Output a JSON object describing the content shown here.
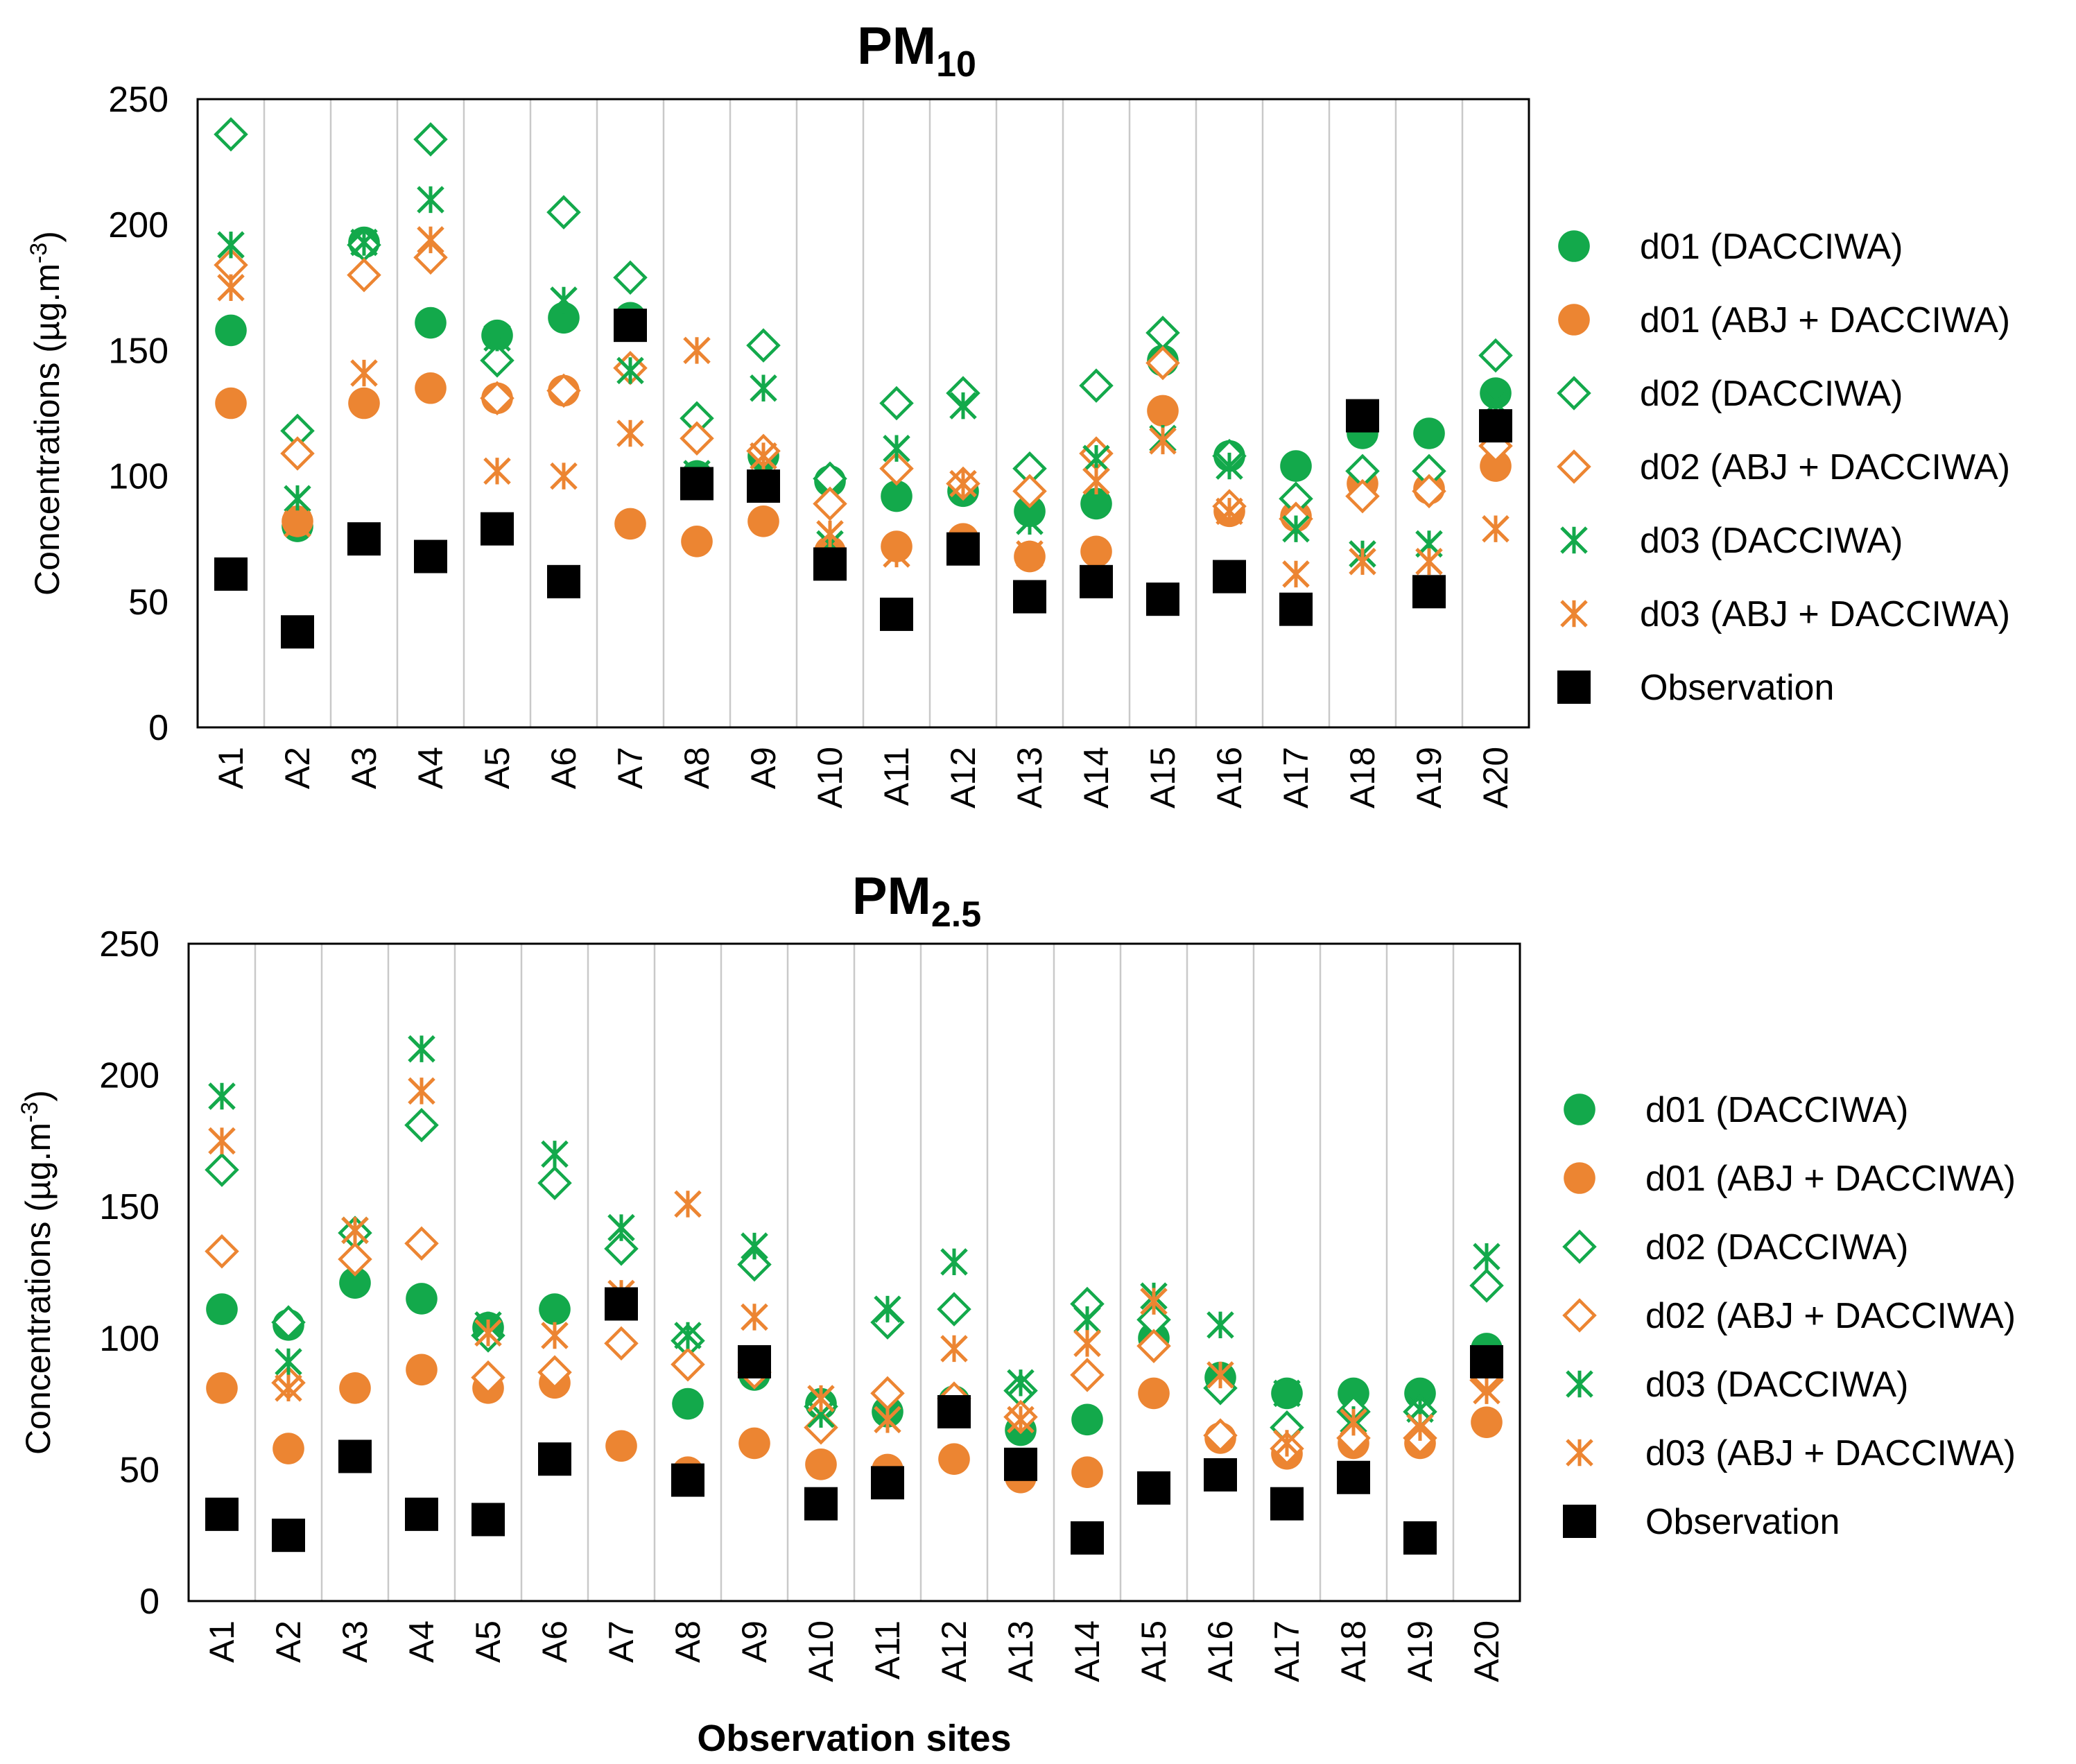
{
  "figure": {
    "xlabel": "Observation sites"
  },
  "colors": {
    "green": "#13a94b",
    "orange": "#ec8532",
    "black": "#000000",
    "grid": "#c9c9c9",
    "frame": "#000000"
  },
  "chart_data": [
    {
      "type": "scatter",
      "title_main": "PM",
      "title_sub": "10",
      "ylabel": "Concentrations (µg.m",
      "ylabel_sup": "-3",
      "ylabel_end": ")",
      "ylim": [
        0,
        250
      ],
      "yticks": [
        0,
        50,
        100,
        150,
        200,
        250
      ],
      "grid": "vertical lines between sites",
      "legend_position": "right",
      "categories": [
        "A1",
        "A2",
        "A3",
        "A4",
        "A5",
        "A6",
        "A7",
        "A8",
        "A9",
        "A10",
        "A11",
        "A12",
        "A13",
        "A14",
        "A15",
        "A16",
        "A17",
        "A18",
        "A19",
        "A20"
      ],
      "series": [
        {
          "name": "d01 (DACCIWA)",
          "marker": "filled-circle",
          "color": "#13a94b",
          "values": [
            158,
            80,
            193,
            161,
            156,
            163,
            163,
            100,
            108,
            98,
            92,
            94,
            86,
            89,
            146,
            108,
            104,
            117,
            117,
            133
          ]
        },
        {
          "name": "d01 (ABJ + DACCIWA)",
          "marker": "filled-circle",
          "color": "#ec8532",
          "values": [
            129,
            82,
            129,
            135,
            131,
            134,
            81,
            74,
            82,
            70,
            72,
            75,
            68,
            70,
            126,
            86,
            84,
            97,
            95,
            104
          ]
        },
        {
          "name": "d02 (DACCIWA)",
          "marker": "open-diamond",
          "color": "#13a94b",
          "values": [
            236,
            118,
            192,
            234,
            146,
            205,
            179,
            123,
            152,
            99,
            129,
            133,
            103,
            136,
            157,
            108,
            91,
            102,
            102,
            148
          ]
        },
        {
          "name": "d02 (ABJ + DACCIWA)",
          "marker": "open-diamond",
          "color": "#ec8532",
          "values": [
            184,
            109,
            180,
            187,
            131,
            134,
            143,
            115,
            110,
            89,
            103,
            97,
            94,
            109,
            145,
            88,
            83,
            92,
            94,
            112
          ]
        },
        {
          "name": "d03 (DACCIWA)",
          "marker": "asterisk",
          "color": "#13a94b",
          "values": [
            192,
            91,
            193,
            210,
            155,
            170,
            142,
            101,
            135,
            73,
            111,
            128,
            82,
            107,
            115,
            104,
            79,
            69,
            73,
            129
          ]
        },
        {
          "name": "d03 (ABJ + DACCIWA)",
          "marker": "asterisk",
          "color": "#ec8532",
          "values": [
            175,
            81,
            141,
            194,
            102,
            100,
            117,
            150,
            108,
            77,
            69,
            97,
            69,
            98,
            114,
            86,
            61,
            66,
            66,
            79
          ]
        },
        {
          "name": "Observation",
          "marker": "filled-square",
          "color": "#000000",
          "values": [
            61,
            38,
            75,
            68,
            79,
            58,
            160,
            97,
            96,
            65,
            45,
            71,
            52,
            58,
            51,
            60,
            47,
            124,
            54,
            120
          ]
        }
      ]
    },
    {
      "type": "scatter",
      "title_main": "PM",
      "title_sub": "2.5",
      "ylabel": "Concentrations (µg.m",
      "ylabel_sup": "-3",
      "ylabel_end": ")",
      "ylim": [
        0,
        250
      ],
      "yticks": [
        0,
        50,
        100,
        150,
        200,
        250
      ],
      "grid": "vertical lines between sites",
      "legend_position": "right",
      "categories": [
        "A1",
        "A2",
        "A3",
        "A4",
        "A5",
        "A6",
        "A7",
        "A8",
        "A9",
        "A10",
        "A11",
        "A12",
        "A13",
        "A14",
        "A15",
        "A16",
        "A17",
        "A18",
        "A19",
        "A20"
      ],
      "series": [
        {
          "name": "d01 (DACCIWA)",
          "marker": "filled-circle",
          "color": "#13a94b",
          "values": [
            111,
            105,
            121,
            115,
            104,
            111,
            113,
            75,
            86,
            75,
            72,
            76,
            65,
            69,
            100,
            85,
            79,
            79,
            79,
            96
          ]
        },
        {
          "name": "d01 (ABJ + DACCIWA)",
          "marker": "filled-circle",
          "color": "#ec8532",
          "values": [
            81,
            58,
            81,
            88,
            81,
            83,
            59,
            49,
            60,
            52,
            50,
            54,
            47,
            49,
            79,
            62,
            56,
            60,
            60,
            68
          ]
        },
        {
          "name": "d02 (DACCIWA)",
          "marker": "open-diamond",
          "color": "#13a94b",
          "values": [
            164,
            106,
            140,
            181,
            101,
            159,
            134,
            99,
            128,
            74,
            106,
            111,
            80,
            113,
            107,
            81,
            66,
            72,
            72,
            120
          ]
        },
        {
          "name": "d02 (ABJ + DACCIWA)",
          "marker": "open-diamond",
          "color": "#ec8532",
          "values": [
            133,
            83,
            130,
            136,
            85,
            87,
            98,
            90,
            87,
            66,
            79,
            77,
            70,
            86,
            97,
            63,
            58,
            62,
            62,
            84
          ]
        },
        {
          "name": "d03 (DACCIWA)",
          "marker": "asterisk",
          "color": "#13a94b",
          "values": [
            192,
            91,
            141,
            210,
            105,
            170,
            142,
            101,
            135,
            71,
            111,
            129,
            83,
            107,
            116,
            105,
            79,
            69,
            73,
            131
          ]
        },
        {
          "name": "d03 (ABJ + DACCIWA)",
          "marker": "asterisk",
          "color": "#ec8532",
          "values": [
            175,
            81,
            141,
            194,
            102,
            101,
            117,
            151,
            108,
            77,
            69,
            96,
            69,
            98,
            114,
            86,
            60,
            68,
            66,
            80
          ]
        },
        {
          "name": "Observation",
          "marker": "filled-square",
          "color": "#000000",
          "values": [
            33,
            25,
            55,
            33,
            31,
            54,
            113,
            46,
            91,
            37,
            45,
            72,
            52,
            24,
            43,
            48,
            37,
            47,
            24,
            91
          ]
        }
      ]
    }
  ]
}
